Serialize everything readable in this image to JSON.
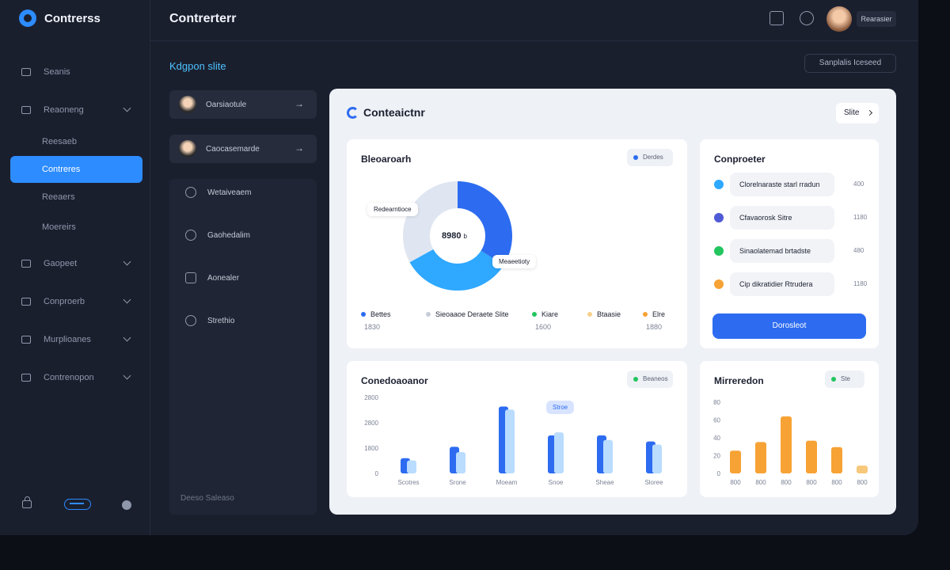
{
  "app": {
    "brand": "Contrerss",
    "title": "Contrerterr"
  },
  "colors": {
    "accent": "#2d8cff",
    "primary": "#2d6cf0",
    "sidebar_bg": "#1a1f2e",
    "card_bg": "#eef1f6",
    "blue": "#2d6cf0",
    "light_blue": "#b9dcff",
    "sky": "#2fa8ff",
    "green": "#22c55e",
    "orange": "#f7a234",
    "violet": "#4f5bd5"
  },
  "sidebar": {
    "items": [
      {
        "label": "Seanis",
        "icon": "list-icon",
        "chevron": false
      },
      {
        "label": "Reaoneng",
        "icon": "chart-icon",
        "chevron": true
      },
      {
        "label": "Reesaeb",
        "sub": true
      },
      {
        "label": "Contreres",
        "sub": true,
        "active": true
      },
      {
        "label": "Reeaers",
        "sub": true
      },
      {
        "label": "Moereirs",
        "sub": true
      },
      {
        "label": "Gaopeet",
        "icon": "folder-icon",
        "chevron": true
      },
      {
        "label": "Conproerb",
        "icon": "card-icon",
        "chevron": true
      },
      {
        "label": "Murplioanes",
        "icon": "grid-icon",
        "chevron": true
      },
      {
        "label": "Contrenopon",
        "icon": "image-icon",
        "chevron": true
      }
    ]
  },
  "header": {
    "user_chip": "Rearasier",
    "breadcrumb": "Kdgpon slite",
    "action": "Sanplalis Iceseed"
  },
  "middle": {
    "contacts": [
      {
        "name": "Oarsiaotule"
      },
      {
        "name": "Caocasemarde"
      }
    ],
    "menu": [
      {
        "label": "Wetaiveaem",
        "icon": "compass-icon"
      },
      {
        "label": "Gaohedalim",
        "icon": "play-icon"
      },
      {
        "label": "Aonealer",
        "icon": "mail-icon"
      },
      {
        "label": "Strethio",
        "icon": "info-icon"
      }
    ],
    "footer": "Deeso Saleaso"
  },
  "main": {
    "title": "Conteaictnr",
    "select": "Slite"
  },
  "donut": {
    "title": "Bleoaroarh",
    "pill": "Derdes",
    "center": "8980",
    "center_suffix": "b",
    "tooltip_a": "Redearntioce",
    "tooltip_b": "Meaeetioty",
    "segments": [
      {
        "color": "#2d6cf0",
        "value": 34
      },
      {
        "color": "#2fa8ff",
        "value": 33
      },
      {
        "color": "#dfe6f1",
        "value": 33
      }
    ],
    "legend": [
      {
        "label": "Bettes",
        "value": "1830",
        "color": "#2d6cf0"
      },
      {
        "label": "Sieoaaoe Deraete Slite",
        "value": "",
        "color": "#c7cdd8"
      },
      {
        "label": "Kiare",
        "value": "1600",
        "color": "#22c55e"
      },
      {
        "label": "Btaasie",
        "value": "",
        "color": "#f7d08a"
      },
      {
        "label": "Elre",
        "value": "1880",
        "color": "#f7a234"
      }
    ]
  },
  "list_panel": {
    "title": "Conproeter",
    "rows": [
      {
        "label": "Clorelnaraste starl rradun",
        "value": "400",
        "color": "#2fa8ff"
      },
      {
        "label": "Cfavaorosk Sitre",
        "value": "1180",
        "color": "#4f5bd5"
      },
      {
        "label": "Sinaolatemad brtadste",
        "value": "480",
        "color": "#22c55e"
      },
      {
        "label": "Cip dikratidier Rtrudera",
        "value": "1180",
        "color": "#f7a234"
      }
    ],
    "button": "Dorosleot"
  },
  "bar_panel": {
    "title": "Conedoaoanor",
    "pill": "Beaneos",
    "tooltip": "Stroe",
    "y_ticks": [
      "2800",
      "2800",
      "1800",
      "0"
    ],
    "categories": [
      "Scotres",
      "Srone",
      "Moeam",
      "Snoe",
      "Sheae",
      "Sloree"
    ],
    "series": [
      {
        "color": "#2d6cf0",
        "values": [
          20,
          35,
          88,
          50,
          50,
          42
        ]
      },
      {
        "color": "#b9dcff",
        "values": [
          17,
          28,
          84,
          54,
          44,
          38
        ]
      }
    ],
    "ylim": [
      0,
      100
    ]
  },
  "bar_panel_2": {
    "title": "Mirreredon",
    "pill": "Ste",
    "y_ticks": [
      "80",
      "60",
      "40",
      "20",
      "0"
    ],
    "categories": [
      "800",
      "800",
      "800",
      "800",
      "800",
      "800"
    ],
    "values": [
      32,
      44,
      80,
      46,
      37,
      11
    ],
    "colors": [
      "#f7a234",
      "#f7a234",
      "#f7a234",
      "#f7a234",
      "#f7a234",
      "#f7c87a"
    ],
    "ylim": [
      0,
      100
    ]
  }
}
